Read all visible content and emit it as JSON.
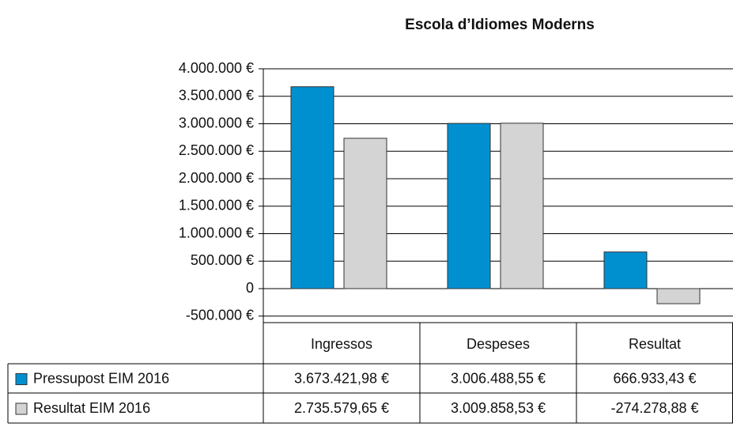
{
  "chart_data": {
    "type": "bar",
    "title": "Escola d’Idiomes Moderns",
    "categories": [
      "Ingressos",
      "Despeses",
      "Resultat"
    ],
    "series": [
      {
        "name": "Pressupost EIM 2016",
        "color": "#0090d0",
        "values": [
          3673421.98,
          3006488.55,
          666933.43
        ],
        "value_labels": [
          "3.673.421,98 €",
          "3.006.488,55 €",
          "666.933,43 €"
        ]
      },
      {
        "name": "Resultat EIM 2016",
        "color": "#d4d4d4",
        "values": [
          2735579.65,
          3009858.53,
          -274278.88
        ],
        "value_labels": [
          "2.735.579,65 €",
          "3.009.858,53 €",
          "-274.278,88 €"
        ]
      }
    ],
    "ylim": [
      -500000,
      4000000
    ],
    "yticks": [
      {
        "value": -500000,
        "label": "-500.000 €"
      },
      0,
      {
        "value": 500000,
        "label": "500.000 €"
      },
      {
        "value": 1000000,
        "label": "1.000.000 €"
      },
      {
        "value": 1500000,
        "label": "1.500.000 €"
      },
      {
        "value": 2000000,
        "label": "2.000.000 €"
      },
      {
        "value": 2500000,
        "label": "2.500.000 €"
      },
      {
        "value": 3000000,
        "label": "3.000.000 €"
      },
      {
        "value": 3500000,
        "label": "3.500.000 €"
      },
      {
        "value": 4000000,
        "label": "4.000.000 €"
      }
    ],
    "grid": true
  }
}
